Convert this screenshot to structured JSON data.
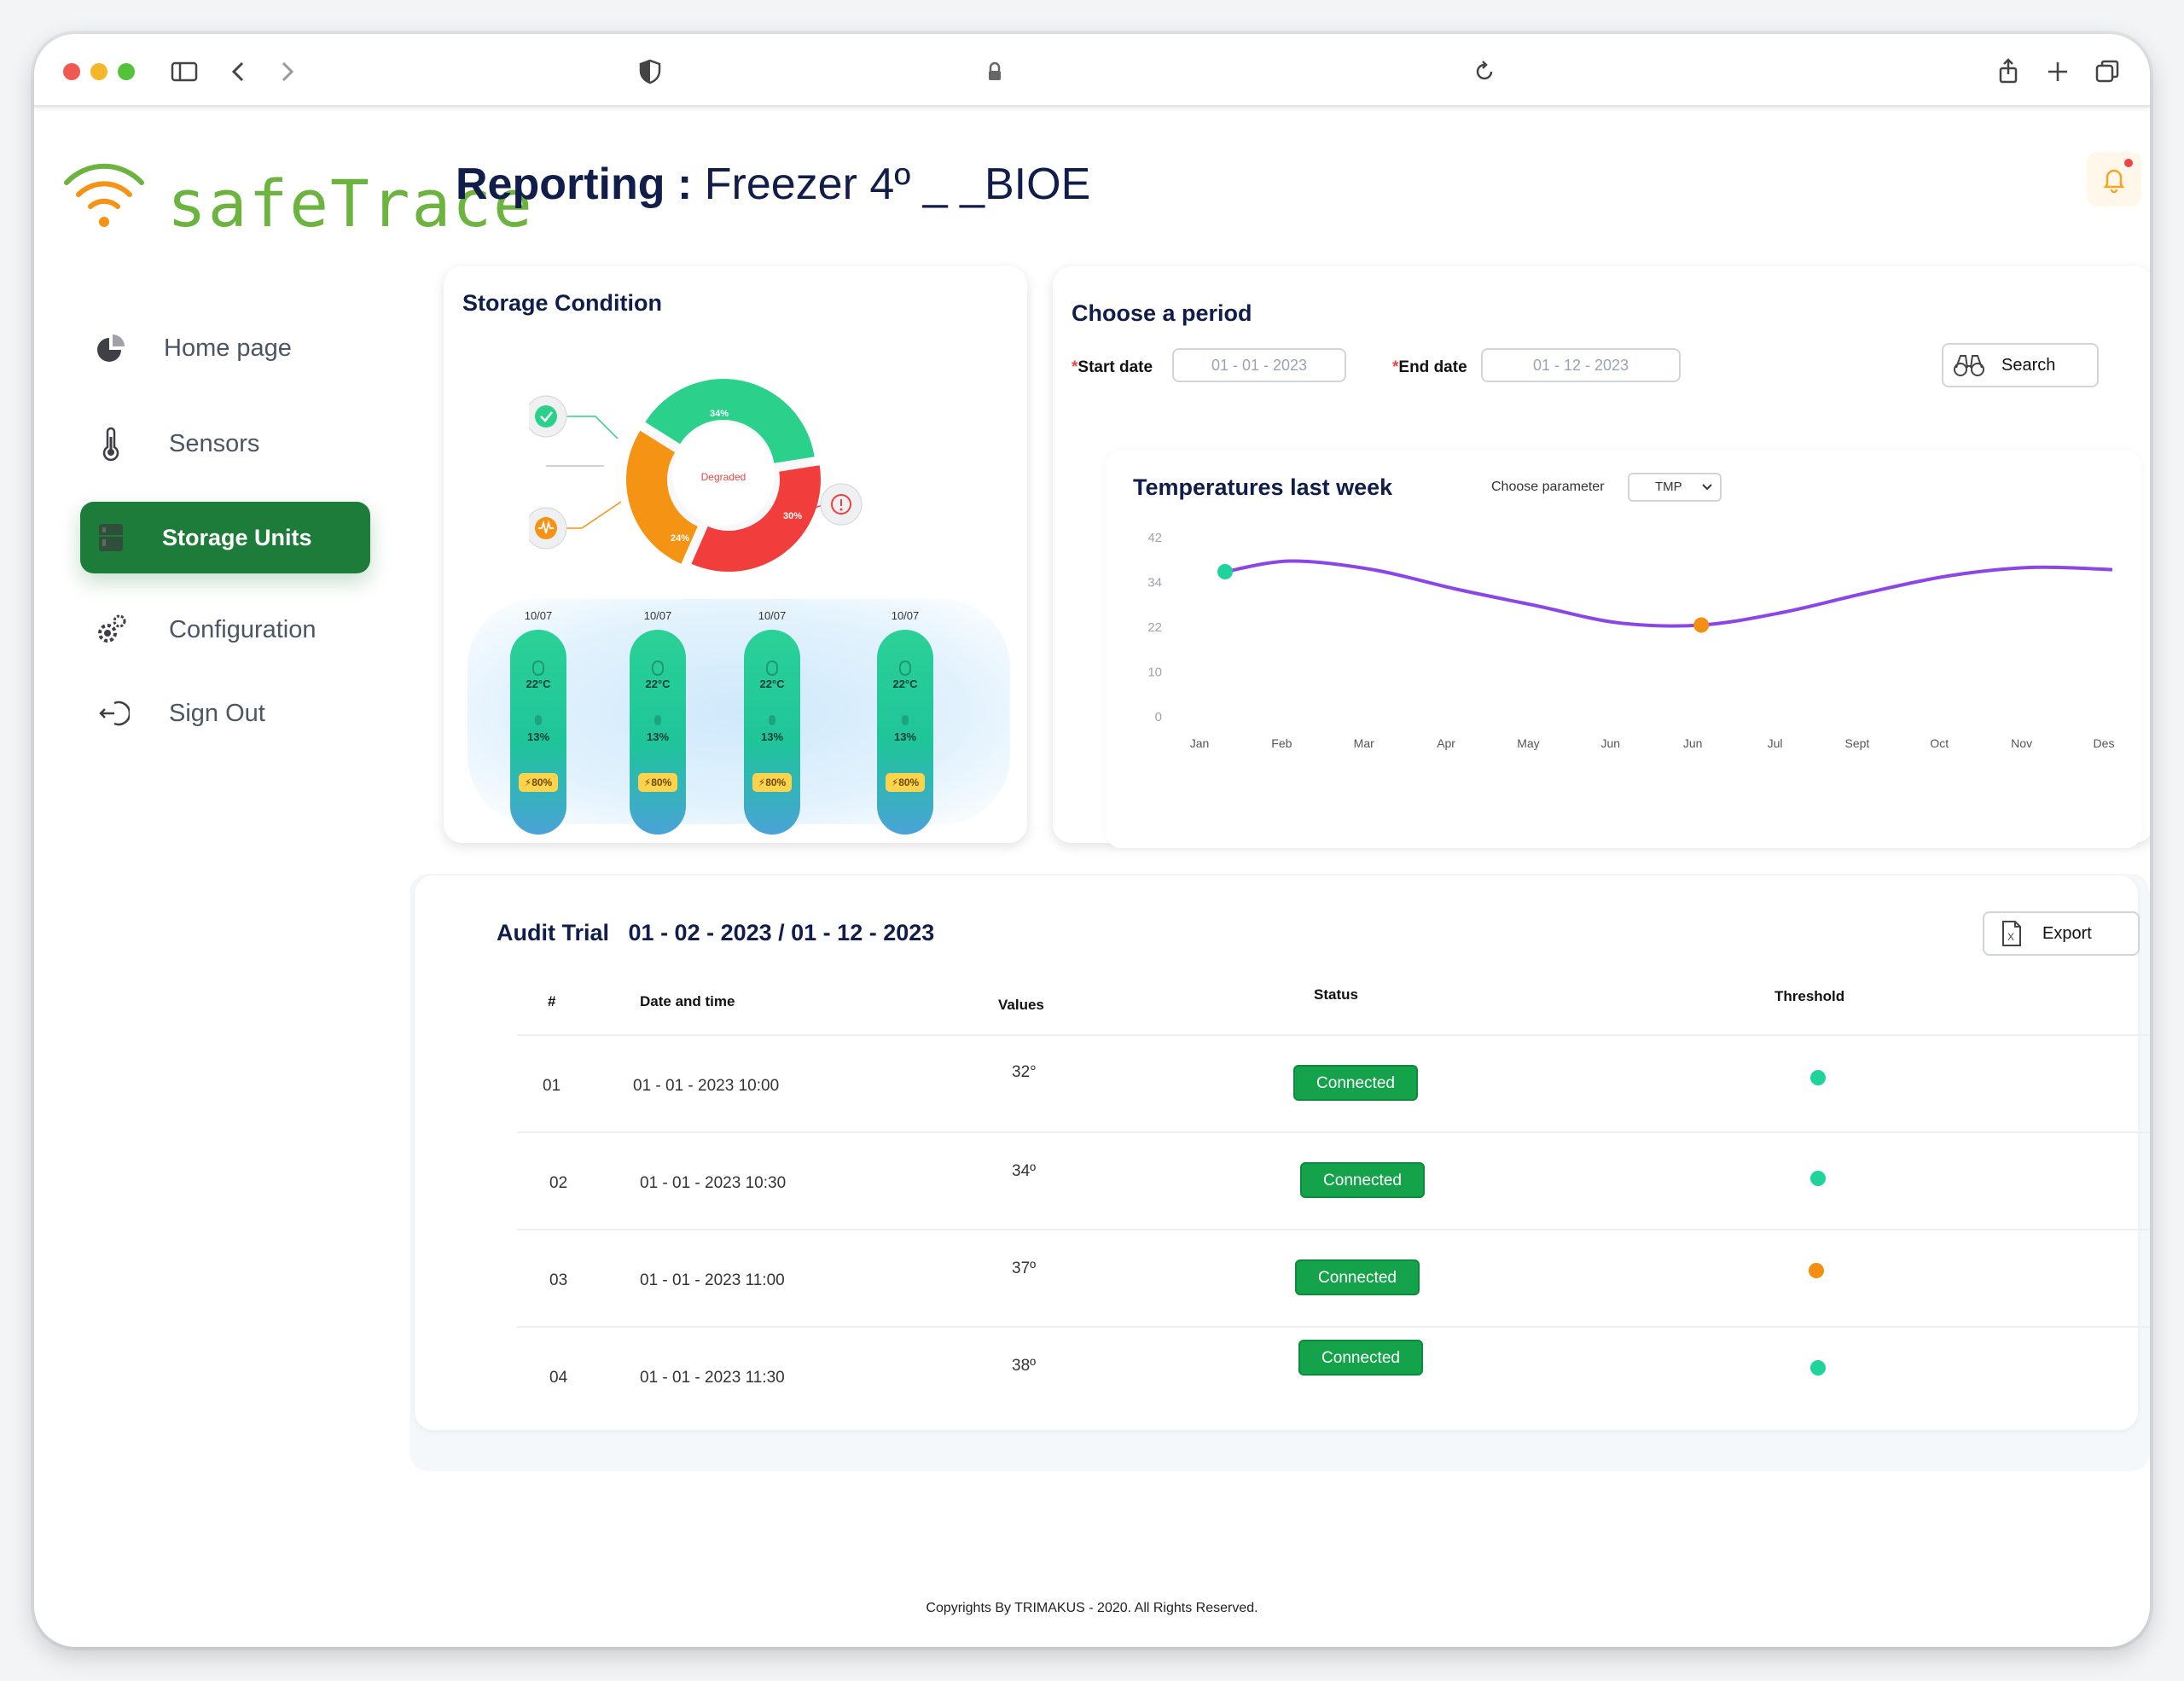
{
  "app": {
    "name": "safeTrace",
    "title_prefix": "Reporting :",
    "title_unit": "Freezer 4º _ _BIOE"
  },
  "sidebar": {
    "items": [
      {
        "label": "Home page",
        "icon": "pie-chart-icon"
      },
      {
        "label": "Sensors",
        "icon": "thermometer-icon"
      },
      {
        "label": "Storage Units",
        "icon": "storage-unit-icon",
        "active": true
      },
      {
        "label": "Configuration",
        "icon": "gear-icon"
      },
      {
        "label": "Sign Out",
        "icon": "sign-out-icon"
      }
    ]
  },
  "storage": {
    "title": "Storage  Condition",
    "donut": {
      "center_label": "Degraded",
      "segments": [
        {
          "label": "34%",
          "value": 34,
          "color": "#2bd18a"
        },
        {
          "label": "30%",
          "value": 30,
          "color": "#f23d3d"
        },
        {
          "label": "24%",
          "value": 24,
          "color": "#f59314"
        }
      ]
    },
    "units": [
      {
        "date": "10/07",
        "temp": "22°C",
        "humidity": "13%",
        "battery": "⚡80%"
      },
      {
        "date": "10/07",
        "temp": "22°C",
        "humidity": "13%",
        "battery": "⚡80%"
      },
      {
        "date": "10/07",
        "temp": "22°C",
        "humidity": "13%",
        "battery": "⚡80%"
      },
      {
        "date": "10/07",
        "temp": "22°C",
        "humidity": "13%",
        "battery": "⚡80%"
      }
    ]
  },
  "period": {
    "title": "Choose a period",
    "start_label": "Start date",
    "start_value": "01 - 01 - 2023",
    "end_label": "End date",
    "end_value": "01 - 12 - 2023",
    "search_label": "Search"
  },
  "temps": {
    "title": "Temperatures last week",
    "param_label": "Choose parameter",
    "param_value": "TMP"
  },
  "chart_data": {
    "type": "line",
    "title": "Temperatures last week",
    "categories": [
      "Jan",
      "Feb",
      "Mar",
      "Apr",
      "May",
      "Jun",
      "Jun",
      "Jul",
      "Sept",
      "Oct",
      "Nov",
      "Des"
    ],
    "y_ticks": [
      "0",
      "10",
      "22",
      "34",
      "42"
    ],
    "series": [
      {
        "values": [
          34,
          36.5,
          34.5,
          30,
          26,
          22,
          21.5,
          24.5,
          29,
          33,
          35,
          34.5
        ]
      }
    ],
    "grid": false,
    "line_color": "#8b46e8",
    "marker_colors": {
      "first": "#1fd39a",
      "min": "#f39012"
    }
  },
  "audit": {
    "title": "Audit Trial",
    "range": "01 - 02 - 2023 / 01 - 12 - 2023",
    "export_label": "Export",
    "columns": {
      "num": "#",
      "datetime": "Date and time",
      "values": "Values",
      "status": "Status",
      "threshold": "Threshold"
    },
    "rows": [
      {
        "num": "01",
        "datetime": "01 - 01 - 2023  10:00",
        "value": "32°",
        "status": "Connected",
        "threshold_color": "#1fd39a"
      },
      {
        "num": "02",
        "datetime": "01 - 01 - 2023  10:30",
        "value": "34º",
        "status": "Connected",
        "threshold_color": "#1fd39a"
      },
      {
        "num": "03",
        "datetime": "01 - 01 - 2023  11:00",
        "value": "37º",
        "status": "Connected",
        "threshold_color": "#f39012"
      },
      {
        "num": "04",
        "datetime": "01 - 01 - 2023  11:30",
        "value": "38º",
        "status": "Connected",
        "threshold_color": "#1fd39a"
      }
    ]
  },
  "footer": {
    "text": "Copyrights By TRIMAKUS - 2020. All Rights Reserved."
  }
}
